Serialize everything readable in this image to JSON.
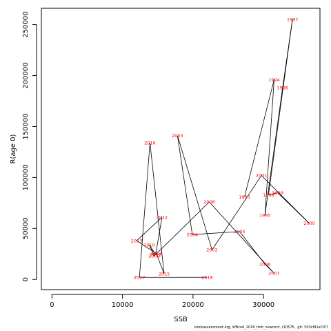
{
  "chart_data": {
    "type": "line",
    "xlabel": "SSB",
    "ylabel": "R(age 0)",
    "xlim": [
      -1500,
      38000
    ],
    "ylim": [
      -10000,
      266000
    ],
    "x_ticks": [
      0,
      10000,
      20000,
      30000
    ],
    "x_tick_labels": [
      "0",
      "10000",
      "20000",
      "30000"
    ],
    "y_ticks": [
      0,
      50000,
      100000,
      150000,
      200000,
      250000
    ],
    "y_tick_labels": [
      "0",
      "50000",
      "100000",
      "150000",
      "200000",
      "250000"
    ],
    "grid": false,
    "line_color": "#000000",
    "label_color": "#ff0000",
    "points": [
      {
        "year": "1993",
        "ssb": 27300,
        "rec": 81000
      },
      {
        "year": "1994",
        "ssb": 31500,
        "rec": 196000
      },
      {
        "year": "1995",
        "ssb": 30200,
        "rec": 63000
      },
      {
        "year": "1996",
        "ssb": 32700,
        "rec": 188000
      },
      {
        "year": "1997",
        "ssb": 34100,
        "rec": 255000
      },
      {
        "year": "1998",
        "ssb": 30700,
        "rec": 83000
      },
      {
        "year": "1999",
        "ssb": 32000,
        "rec": 85000
      },
      {
        "year": "2000",
        "ssb": 36500,
        "rec": 55000
      },
      {
        "year": "2001",
        "ssb": 29700,
        "rec": 102000
      },
      {
        "year": "2002",
        "ssb": 22700,
        "rec": 29000
      },
      {
        "year": "2003",
        "ssb": 17800,
        "rec": 141000
      },
      {
        "year": "2004",
        "ssb": 19900,
        "rec": 44000
      },
      {
        "year": "2005",
        "ssb": 26600,
        "rec": 47000
      },
      {
        "year": "2006",
        "ssb": 30200,
        "rec": 15000
      },
      {
        "year": "2007",
        "ssb": 31500,
        "rec": 6000
      },
      {
        "year": "2008",
        "ssb": 22300,
        "rec": 76000
      },
      {
        "year": "2009",
        "ssb": 14500,
        "rec": 23000
      },
      {
        "year": "2010",
        "ssb": 13800,
        "rec": 34000
      },
      {
        "year": "2011",
        "ssb": 14700,
        "rec": 24500
      },
      {
        "year": "2012",
        "ssb": 15600,
        "rec": 61000
      },
      {
        "year": "2013",
        "ssb": 12000,
        "rec": 38000
      },
      {
        "year": "2014",
        "ssb": 14800,
        "rec": 25500
      },
      {
        "year": "2015",
        "ssb": 15900,
        "rec": 5500
      },
      {
        "year": "2016",
        "ssb": 13900,
        "rec": 134000
      },
      {
        "year": "2017",
        "ssb": 12400,
        "rec": 2000
      },
      {
        "year": "2018",
        "ssb": 22000,
        "rec": 2000
      }
    ]
  },
  "footnote": "stockassessment.org, WBcod_2018_tmb_newconf, r10576 , git: 503cf91af157"
}
